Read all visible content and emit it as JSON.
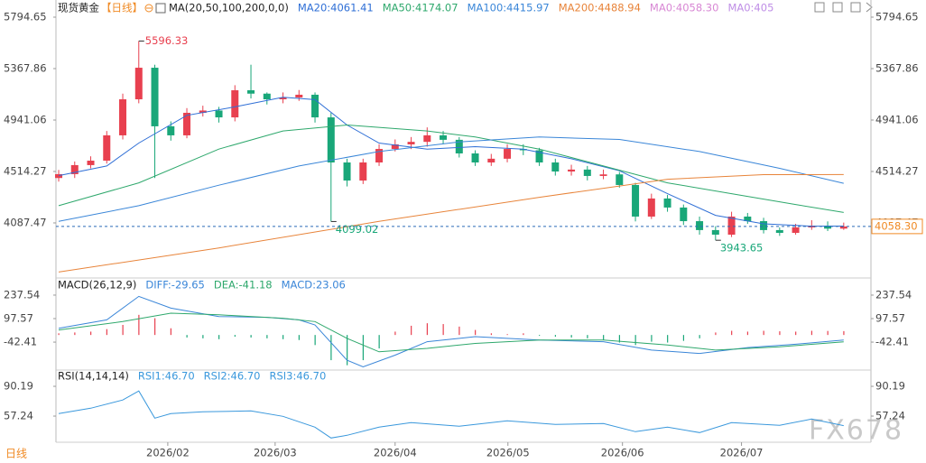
{
  "header": {
    "symbol": "现货黄金",
    "period": "【日线】",
    "indicator": "MA(20,50,100,200,0,0)",
    "footer": "日线",
    "watermark": "FX678"
  },
  "chart_data": [
    {
      "type": "candlestick",
      "up_color": "#e8404f",
      "down_color": "#19a779",
      "candles": {
        "open": [
          4460,
          4492,
          4567,
          4604,
          4814,
          5113,
          5375,
          4889,
          4814,
          5001,
          5020,
          4963,
          5188,
          5160,
          5113,
          5128,
          5151,
          4963,
          4589,
          4439,
          4589,
          4701,
          4739,
          4760,
          4814,
          4777,
          4664,
          4589,
          4620,
          4701,
          4690,
          4589,
          4514,
          4530,
          4477,
          4490,
          4402,
          4140,
          4290,
          4215,
          4102,
          4028,
          3990,
          4140,
          4102,
          4028,
          4005,
          4050,
          4065,
          4040
        ],
        "high": [
          4527,
          4597,
          4640,
          4850,
          5160,
          5596.33,
          5400,
          4930,
          5040,
          5060,
          5050,
          5230,
          5400,
          5170,
          5170,
          5190,
          5170,
          5000,
          4620,
          4620,
          4740,
          4780,
          4800,
          4880,
          4850,
          4800,
          4690,
          4660,
          4740,
          4740,
          4710,
          4620,
          4570,
          4560,
          4530,
          4510,
          4420,
          4330,
          4320,
          4240,
          4140,
          4060,
          4180,
          4170,
          4130,
          4050,
          4080,
          4110,
          4100,
          4090
        ],
        "low": [
          4430,
          4460,
          4540,
          4580,
          4780,
          5080,
          4460,
          4770,
          4790,
          4970,
          4920,
          4930,
          5120,
          5070,
          5080,
          5100,
          4920,
          4099.02,
          4390,
          4410,
          4560,
          4680,
          4700,
          4720,
          4740,
          4630,
          4560,
          4560,
          4590,
          4650,
          4560,
          4480,
          4480,
          4440,
          4450,
          4380,
          4100,
          4120,
          4180,
          4070,
          3990,
          3943.65,
          3970,
          4080,
          4000,
          3980,
          3990,
          4030,
          4020,
          4030
        ],
        "close": [
          4492,
          4567,
          4604,
          4814,
          5113,
          5375,
          4889,
          4814,
          5001,
          5020,
          4963,
          5188,
          5160,
          5113,
          5128,
          5151,
          4963,
          4589,
          4439,
          4589,
          4701,
          4739,
          4760,
          4814,
          4777,
          4664,
          4589,
          4620,
          4701,
          4690,
          4589,
          4514,
          4530,
          4477,
          4490,
          4402,
          4140,
          4290,
          4215,
          4102,
          4028,
          3990,
          4140,
          4102,
          4028,
          4005,
          4050,
          4065,
          4040,
          4058.3
        ]
      },
      "last_label": "4058.30",
      "series": [
        {
          "name": "MA20:4061.41",
          "color": "#2f6fd6",
          "x": [
            0,
            3,
            5,
            8,
            11,
            14,
            16,
            18,
            20,
            23,
            26,
            29,
            32,
            35,
            38,
            41,
            44,
            47,
            49
          ],
          "values": [
            4480,
            4560,
            4750,
            4980,
            5050,
            5130,
            5110,
            4900,
            4750,
            4700,
            4720,
            4700,
            4620,
            4520,
            4330,
            4150,
            4080,
            4060,
            4061.41
          ]
        },
        {
          "name": "MA50:4174.07",
          "color": "#2ea86c",
          "x": [
            0,
            5,
            10,
            14,
            18,
            23,
            26,
            30,
            34,
            38,
            42,
            46,
            49
          ],
          "values": [
            4230,
            4420,
            4700,
            4850,
            4900,
            4850,
            4800,
            4700,
            4560,
            4420,
            4330,
            4240,
            4174.07
          ]
        },
        {
          "name": "MA100:4415.97",
          "color": "#3a86d8",
          "x": [
            0,
            5,
            10,
            15,
            20,
            25,
            30,
            35,
            40,
            45,
            49
          ],
          "values": [
            4100,
            4230,
            4400,
            4560,
            4680,
            4760,
            4800,
            4780,
            4680,
            4540,
            4415.97
          ]
        },
        {
          "name": "MA200:4488.94",
          "color": "#e8843a",
          "x": [
            0,
            10,
            20,
            30,
            38,
            44,
            49
          ],
          "values": [
            3680,
            3880,
            4100,
            4300,
            4450,
            4488,
            4488.94
          ]
        }
      ],
      "legend_extra": [
        {
          "name": "MA0:4058.30",
          "color": "#d887d4"
        },
        {
          "name": "MA0:405",
          "color": "#bf8ee6"
        }
      ],
      "ylim": [
        3653,
        5877
      ],
      "yticks": [
        4087.47,
        4514.27,
        4941.06,
        5367.86,
        5794.65
      ],
      "xlim": [
        -0.17,
        50.7
      ]
    },
    {
      "type": "macd",
      "title": "MACD(26,12,9)",
      "histogram": {
        "up_color": "#e8404f",
        "down_color": "#19a779",
        "values": [
          10,
          15,
          20,
          35,
          60,
          120,
          100,
          40,
          -15,
          -20,
          -25,
          -10,
          -15,
          -20,
          -25,
          -30,
          -60,
          -150,
          -180,
          -150,
          -80,
          20,
          55,
          70,
          65,
          50,
          30,
          10,
          5,
          10,
          -5,
          -10,
          -15,
          -20,
          -30,
          -45,
          -60,
          -40,
          -45,
          -35,
          -20,
          15,
          25,
          20,
          25,
          22,
          20,
          25,
          24,
          23.06
        ]
      },
      "series": [
        {
          "name": "DIFF:-29.65",
          "color": "#3a86d8",
          "x": [
            0,
            3,
            5,
            7,
            10,
            13,
            15,
            16,
            18,
            19,
            21,
            23,
            26,
            30,
            34,
            37,
            40,
            43,
            46,
            49
          ],
          "values": [
            40,
            90,
            230,
            160,
            110,
            105,
            90,
            60,
            -150,
            -190,
            -120,
            -40,
            -10,
            -30,
            -40,
            -90,
            -110,
            -75,
            -55,
            -29.65
          ]
        },
        {
          "name": "DEA:-41.18",
          "color": "#2ea86c",
          "x": [
            0,
            4,
            7,
            10,
            14,
            16,
            18,
            20,
            23,
            26,
            30,
            34,
            38,
            41,
            45,
            49
          ],
          "values": [
            30,
            80,
            130,
            120,
            100,
            80,
            -20,
            -100,
            -80,
            -50,
            -30,
            -30,
            -60,
            -90,
            -70,
            -41.18
          ]
        }
      ],
      "legend_extra": [
        {
          "name": "MACD:23.06",
          "color": "#3a86d8"
        }
      ],
      "ylim": [
        -198,
        318
      ],
      "yticks": [
        -42.41,
        97.57,
        237.54
      ],
      "xlim": [
        -0.17,
        50.7
      ]
    },
    {
      "type": "line",
      "title": "RSI(14,14,14)",
      "series": [
        {
          "name": "RSI1:46.70",
          "color": "#3a98dc",
          "x": [
            0,
            2,
            4,
            5,
            6,
            7,
            9,
            12,
            14,
            16,
            17,
            18,
            20,
            22,
            25,
            28,
            31,
            34,
            36,
            38,
            40,
            42,
            45,
            47,
            49
          ],
          "values": [
            60,
            66,
            75,
            85,
            55,
            60,
            62,
            63,
            57,
            45,
            33,
            36,
            45,
            50,
            46,
            52,
            48,
            49,
            40,
            45,
            39,
            50,
            47,
            54,
            46.7
          ]
        }
      ],
      "legend_extra": [
        {
          "name": "RSI2:46.70",
          "color": "#3a98dc"
        },
        {
          "name": "RSI3:46.70",
          "color": "#3a98dc"
        }
      ],
      "ylim": [
        28.3,
        106.2
      ],
      "yticks": [
        57.24,
        90.19
      ],
      "xlim": [
        -0.17,
        50.7
      ],
      "xticks": [
        {
          "value": 6.81,
          "label": "2026/02"
        },
        {
          "value": 13.51,
          "label": "2026/03"
        },
        {
          "value": 21.0,
          "label": "2026/04"
        },
        {
          "value": 28.04,
          "label": "2026/05"
        },
        {
          "value": 35.19,
          "label": "2026/06"
        },
        {
          "value": 42.62,
          "label": "2026/07"
        }
      ]
    }
  ]
}
